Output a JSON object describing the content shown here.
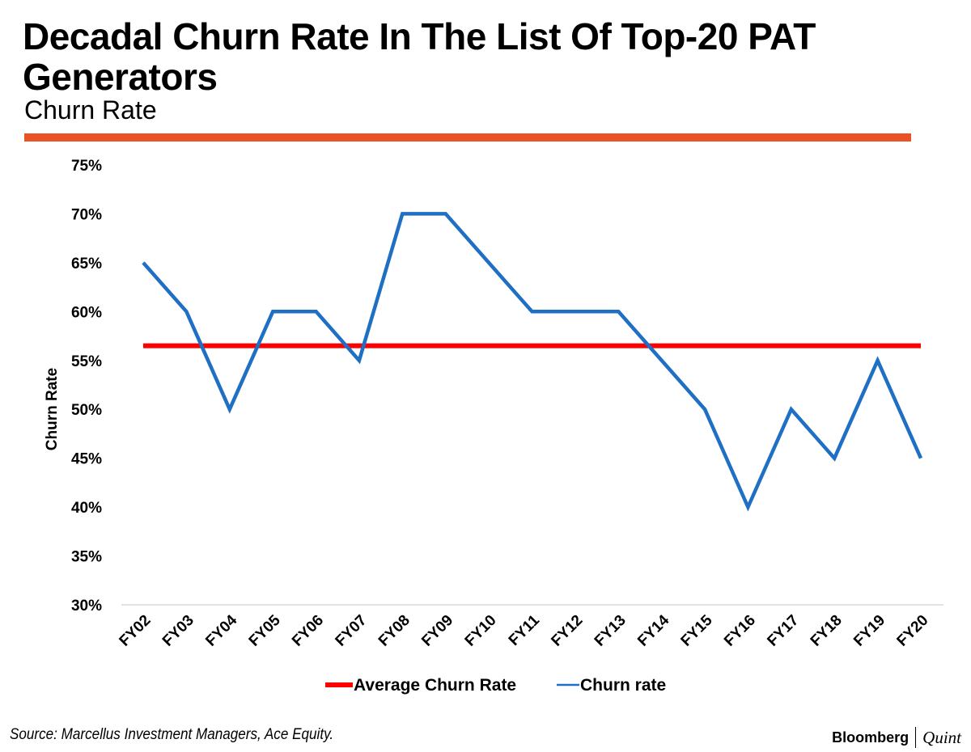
{
  "header": {
    "title": "Decadal Churn Rate In The List Of Top-20 PAT Generators",
    "subtitle": "Churn Rate",
    "accent_color": "#ea5226"
  },
  "chart_data": {
    "type": "line",
    "title": "Decadal Churn Rate In The List Of Top-20 PAT Generators",
    "ylabel": "Churn Rate",
    "xlabel": "",
    "ylim": [
      30,
      75
    ],
    "ytick_step": 5,
    "y_tick_labels": [
      "30%",
      "35%",
      "40%",
      "45%",
      "50%",
      "55%",
      "60%",
      "65%",
      "70%",
      "75%"
    ],
    "categories": [
      "FY02",
      "FY03",
      "FY04",
      "FY05",
      "FY06",
      "FY07",
      "FY08",
      "FY09",
      "FY10",
      "FY11",
      "FY12",
      "FY13",
      "FY14",
      "FY15",
      "FY16",
      "FY17",
      "FY18",
      "FY19",
      "FY20"
    ],
    "series": [
      {
        "name": "Average Churn Rate",
        "color": "#ff0000",
        "values": [
          56.5,
          56.5,
          56.5,
          56.5,
          56.5,
          56.5,
          56.5,
          56.5,
          56.5,
          56.5,
          56.5,
          56.5,
          56.5,
          56.5,
          56.5,
          56.5,
          56.5,
          56.5,
          56.5
        ]
      },
      {
        "name": "Churn rate",
        "color": "#1f6fc5",
        "values": [
          65,
          60,
          50,
          60,
          60,
          55,
          70,
          70,
          65,
          60,
          60,
          60,
          55,
          50,
          40,
          50,
          45,
          55,
          45
        ]
      }
    ],
    "legend": "bottom",
    "grid": false
  },
  "footer": {
    "source": "Source: Marcellus Investment Managers, Ace Equity.",
    "brand_primary": "Bloomberg",
    "brand_secondary": "Quint"
  }
}
